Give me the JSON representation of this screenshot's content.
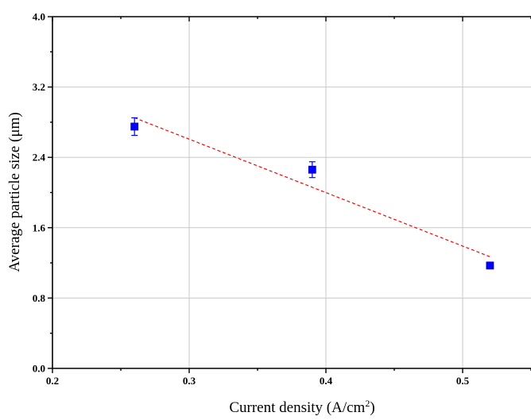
{
  "chart_data": {
    "type": "scatter",
    "xlabel_main": "Current density (A/cm",
    "xlabel_sup": "2",
    "xlabel_end": ")",
    "ylabel": "Average particle size (μm)",
    "xlim": [
      0.2,
      0.55
    ],
    "ylim": [
      0.0,
      4.0
    ],
    "grid": true,
    "x_ticks": [
      0.2,
      0.3,
      0.4,
      0.5
    ],
    "x_tick_labels": [
      "0.2",
      "0.3",
      "0.4",
      "0.5"
    ],
    "y_ticks": [
      0.0,
      0.8,
      1.6,
      2.4,
      3.2,
      4.0
    ],
    "y_tick_labels": [
      "0.0",
      "0.8",
      "1.6",
      "2.4",
      "3.2",
      "4.0"
    ],
    "series": [
      {
        "marker": "square",
        "color": "#0000ff",
        "x": [
          0.26,
          0.39,
          0.52
        ],
        "y": [
          2.75,
          2.26,
          1.17
        ],
        "yerr": [
          0.1,
          0.09,
          0.03
        ]
      }
    ],
    "fit_line": {
      "style": "dashed",
      "color": "#ff0000",
      "x": [
        0.26,
        0.52
      ],
      "y": [
        2.85,
        1.27
      ]
    }
  }
}
